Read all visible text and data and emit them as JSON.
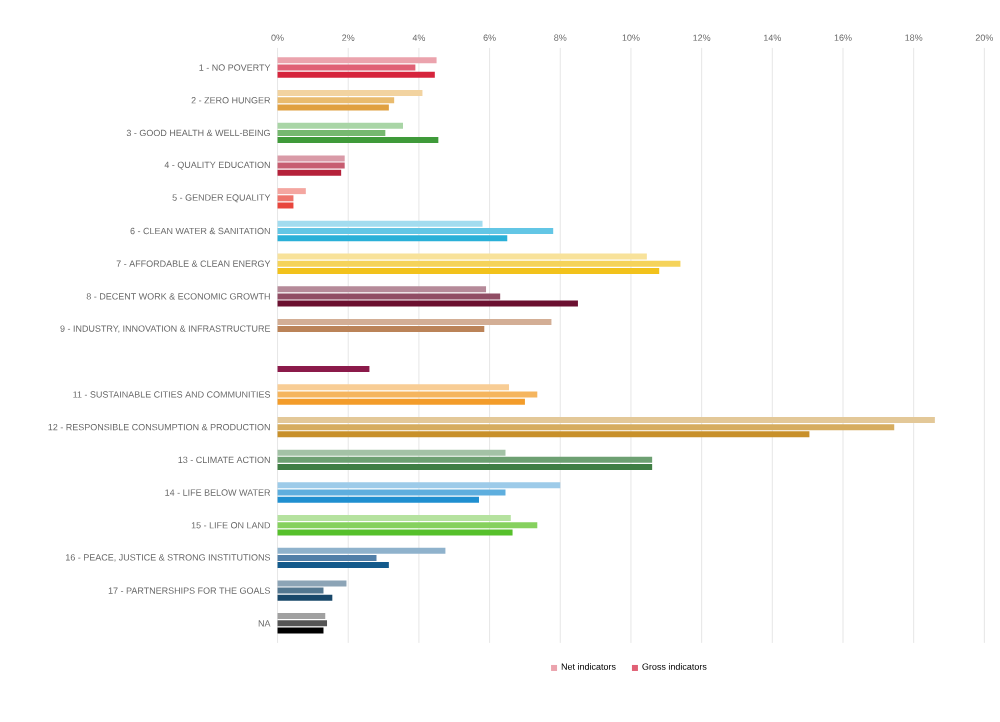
{
  "chart_data": {
    "type": "bar",
    "orientation": "horizontal",
    "grid": "x",
    "legend": "bottom",
    "categories": [
      "1 - NO POVERTY",
      "2 - ZERO HUNGER",
      "3 - GOOD HEALTH & WELL-BEING",
      "4 - QUALITY EDUCATION",
      "5 - GENDER EQUALITY",
      "6 - CLEAN WATER & SANITATION",
      "7 - AFFORDABLE & CLEAN ENERGY",
      "8 - DECENT WORK & ECONOMIC GROWTH",
      "9 - INDUSTRY, INNOVATION & INFRASTRUCTURE",
      null,
      "11 - SUSTAINABLE CITIES AND COMMUNITIES",
      "12 - RESPONSIBLE CONSUMPTION & PRODUCTION",
      "13 - CLIMATE ACTION",
      "14 - LIFE BELOW WATER",
      "15 - LIFE ON LAND",
      "16 - PEACE, JUSTICE & STRONG INSTITUTIONS",
      "17 - PARTNERSHIPS FOR THE GOALS",
      "NA"
    ],
    "xlim": [
      0,
      20
    ],
    "xticks": [
      {
        "value": 0,
        "label": "0%"
      },
      {
        "value": 2,
        "label": "2%"
      },
      {
        "value": 4,
        "label": "4%"
      },
      {
        "value": 6,
        "label": "6%"
      },
      {
        "value": 8,
        "label": "8%"
      },
      {
        "value": 10,
        "label": "10%"
      },
      {
        "value": 12,
        "label": "12%"
      },
      {
        "value": 14,
        "label": "14%"
      },
      {
        "value": 16,
        "label": "16%"
      },
      {
        "value": 18,
        "label": "18%"
      },
      {
        "value": 20,
        "label": "20%"
      }
    ],
    "series": [
      {
        "name": "Net indicators",
        "values": [
          4.5,
          4.1,
          3.55,
          1.9,
          0.8,
          5.8,
          10.45,
          5.9,
          7.75,
          null,
          6.55,
          18.6,
          6.45,
          8.0,
          6.6,
          4.75,
          1.95,
          1.35
        ],
        "colors": [
          "#eba3ad",
          "#f2d3a0",
          "#a9d5a6",
          "#d99aa7",
          "#f4a6a0",
          "#a3dcef",
          "#f8e29a",
          "#b58a99",
          "#d3ae95",
          "#c78da4",
          "#f8cd95",
          "#e3c898",
          "#a3c2a6",
          "#9dcbe9",
          "#b5e29f",
          "#8fb2cc",
          "#8ca4b6",
          "#a0a0a0"
        ]
      },
      {
        "name": "Gross indicators",
        "values": [
          3.9,
          3.3,
          3.05,
          1.9,
          0.45,
          7.8,
          11.4,
          6.3,
          5.85,
          null,
          7.35,
          17.45,
          10.6,
          6.45,
          7.35,
          2.8,
          1.3,
          1.4
        ],
        "colors": [
          "#e06075",
          "#e9bb6e",
          "#76b870",
          "#c75d70",
          "#ee756c",
          "#63c6e5",
          "#f5d35a",
          "#904d64",
          "#bb8358",
          "#a9537a",
          "#f5b55e",
          "#d6ac5e",
          "#6da072",
          "#5eaede",
          "#86d15e",
          "#517fa8",
          "#537790",
          "#555555"
        ]
      },
      {
        "values": [
          4.45,
          3.15,
          4.55,
          1.8,
          0.45,
          6.5,
          10.8,
          8.5,
          null,
          2.6,
          7.0,
          15.05,
          10.6,
          5.7,
          6.65,
          3.15,
          1.55,
          1.3
        ],
        "colors": [
          "#d6243c",
          "#e0a040",
          "#3f9a3a",
          "#b5213a",
          "#e8453c",
          "#2ab0d8",
          "#f2c21b",
          "#6b1030",
          "#a05a2c",
          "#8b1a4a",
          "#f39c2a",
          "#c8902a",
          "#3f7e44",
          "#1f8fd0",
          "#56c02b",
          "#135a8c",
          "#19486a",
          "#000000"
        ]
      }
    ]
  }
}
